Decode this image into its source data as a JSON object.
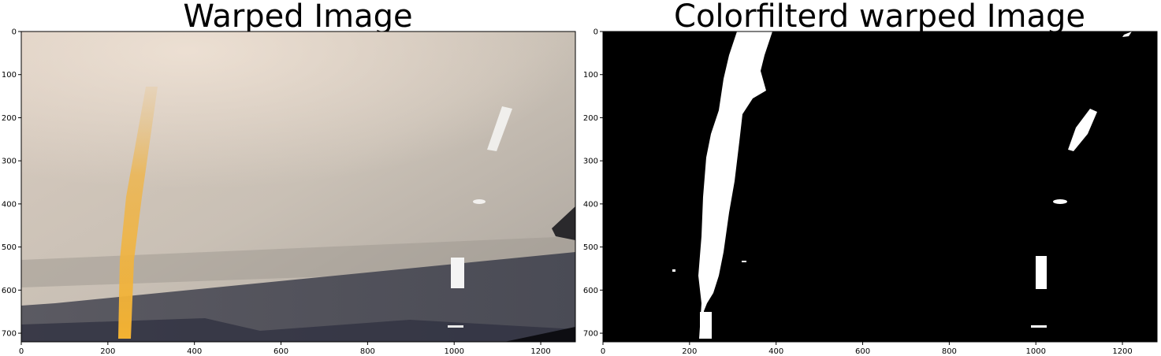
{
  "chart_data": [
    {
      "type": "image",
      "title": "Warped Image",
      "xlim": [
        0,
        1280
      ],
      "ylim": [
        720,
        0
      ],
      "x_ticks": [
        0,
        200,
        400,
        600,
        800,
        1000,
        1200
      ],
      "y_ticks": [
        0,
        100,
        200,
        300,
        400,
        500,
        600,
        700
      ],
      "colors": {
        "sky": "#cdc2b4",
        "road": "#54535b",
        "lane_yellow": "#f0b43c",
        "lane_white": "#f4f4f4"
      }
    },
    {
      "type": "image",
      "title": "Colorfilterd warped Image",
      "xlim": [
        0,
        1280
      ],
      "ylim": [
        720,
        0
      ],
      "x_ticks": [
        0,
        200,
        400,
        600,
        800,
        1000,
        1200
      ],
      "y_ticks": [
        0,
        100,
        200,
        300,
        400,
        500,
        600,
        700
      ],
      "colors": {
        "background": "#000000",
        "foreground": "#ffffff"
      }
    }
  ]
}
